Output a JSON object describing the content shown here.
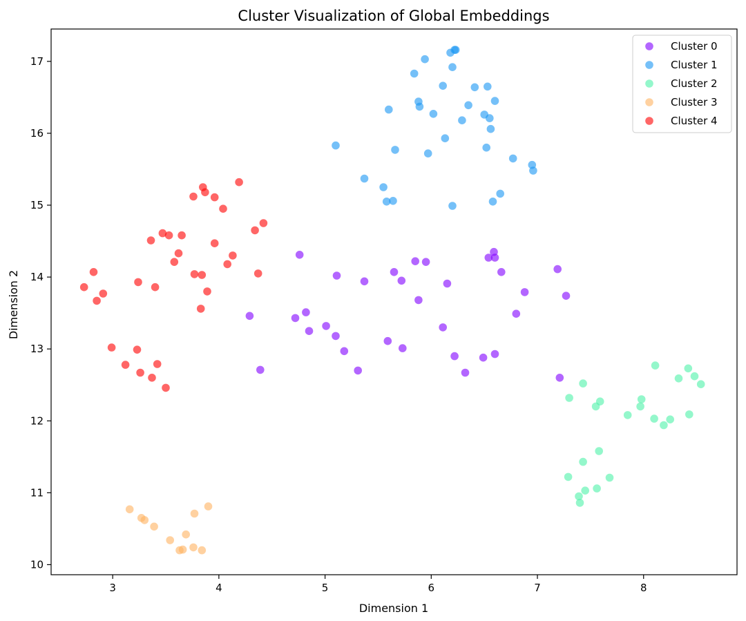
{
  "chart_data": {
    "type": "scatter",
    "title": "Cluster Visualization of Global Embeddings",
    "xlabel": "Dimension 1",
    "ylabel": "Dimension 2",
    "xlim": [
      2.42,
      8.88
    ],
    "ylim": [
      9.86,
      17.45
    ],
    "xticks": [
      3,
      4,
      5,
      6,
      7,
      8
    ],
    "yticks": [
      10,
      11,
      12,
      13,
      14,
      15,
      16,
      17
    ],
    "grid": false,
    "legend_position": "top-right",
    "series": [
      {
        "name": "Cluster 0",
        "color": "#8000ff",
        "points": [
          [
            4.29,
            13.46
          ],
          [
            4.39,
            12.71
          ],
          [
            4.72,
            13.43
          ],
          [
            4.76,
            14.31
          ],
          [
            4.82,
            13.51
          ],
          [
            4.85,
            13.25
          ],
          [
            5.01,
            13.32
          ],
          [
            5.1,
            13.18
          ],
          [
            5.11,
            14.02
          ],
          [
            5.18,
            12.97
          ],
          [
            5.31,
            12.7
          ],
          [
            5.37,
            13.94
          ],
          [
            5.59,
            13.11
          ],
          [
            5.65,
            14.07
          ],
          [
            5.72,
            13.95
          ],
          [
            5.73,
            13.01
          ],
          [
            5.85,
            14.22
          ],
          [
            5.88,
            13.68
          ],
          [
            5.95,
            14.21
          ],
          [
            6.11,
            13.3
          ],
          [
            6.15,
            13.91
          ],
          [
            6.22,
            12.9
          ],
          [
            6.32,
            12.67
          ],
          [
            6.49,
            12.88
          ],
          [
            6.54,
            14.27
          ],
          [
            6.59,
            14.35
          ],
          [
            6.6,
            14.27
          ],
          [
            6.6,
            12.93
          ],
          [
            6.66,
            14.07
          ],
          [
            6.8,
            13.49
          ],
          [
            6.88,
            13.79
          ],
          [
            7.19,
            14.11
          ],
          [
            7.27,
            13.74
          ],
          [
            7.21,
            12.6
          ]
        ]
      },
      {
        "name": "Cluster 1",
        "color": "#1996f3",
        "points": [
          [
            5.1,
            15.83
          ],
          [
            5.37,
            15.37
          ],
          [
            5.55,
            15.25
          ],
          [
            5.58,
            15.05
          ],
          [
            5.6,
            16.33
          ],
          [
            5.64,
            15.06
          ],
          [
            5.66,
            15.77
          ],
          [
            5.84,
            16.83
          ],
          [
            5.88,
            16.44
          ],
          [
            5.89,
            16.37
          ],
          [
            5.94,
            17.03
          ],
          [
            5.97,
            15.72
          ],
          [
            6.02,
            16.27
          ],
          [
            6.11,
            16.66
          ],
          [
            6.13,
            15.93
          ],
          [
            6.18,
            17.12
          ],
          [
            6.2,
            16.92
          ],
          [
            6.2,
            14.99
          ],
          [
            6.22,
            17.16
          ],
          [
            6.23,
            17.16
          ],
          [
            6.29,
            16.18
          ],
          [
            6.35,
            16.39
          ],
          [
            6.41,
            16.64
          ],
          [
            6.5,
            16.26
          ],
          [
            6.52,
            15.8
          ],
          [
            6.53,
            16.65
          ],
          [
            6.55,
            16.21
          ],
          [
            6.56,
            16.06
          ],
          [
            6.58,
            15.05
          ],
          [
            6.6,
            16.45
          ],
          [
            6.65,
            15.16
          ],
          [
            6.77,
            15.65
          ],
          [
            6.95,
            15.56
          ],
          [
            6.96,
            15.48
          ]
        ]
      },
      {
        "name": "Cluster 2",
        "color": "#4df2a8",
        "points": [
          [
            7.29,
            11.22
          ],
          [
            7.3,
            12.32
          ],
          [
            7.39,
            10.95
          ],
          [
            7.4,
            10.86
          ],
          [
            7.43,
            11.43
          ],
          [
            7.43,
            12.52
          ],
          [
            7.45,
            11.03
          ],
          [
            7.55,
            12.2
          ],
          [
            7.56,
            11.06
          ],
          [
            7.58,
            11.58
          ],
          [
            7.59,
            12.27
          ],
          [
            7.68,
            11.21
          ],
          [
            7.85,
            12.08
          ],
          [
            7.97,
            12.2
          ],
          [
            7.98,
            12.3
          ],
          [
            8.1,
            12.03
          ],
          [
            8.11,
            12.77
          ],
          [
            8.19,
            11.94
          ],
          [
            8.25,
            12.02
          ],
          [
            8.33,
            12.59
          ],
          [
            8.42,
            12.73
          ],
          [
            8.43,
            12.09
          ],
          [
            8.48,
            12.62
          ],
          [
            8.54,
            12.51
          ]
        ]
      },
      {
        "name": "Cluster 3",
        "color": "#ffb360",
        "points": [
          [
            3.16,
            10.77
          ],
          [
            3.27,
            10.65
          ],
          [
            3.3,
            10.62
          ],
          [
            3.39,
            10.53
          ],
          [
            3.54,
            10.34
          ],
          [
            3.63,
            10.2
          ],
          [
            3.66,
            10.21
          ],
          [
            3.69,
            10.42
          ],
          [
            3.76,
            10.24
          ],
          [
            3.77,
            10.71
          ],
          [
            3.84,
            10.2
          ],
          [
            3.9,
            10.81
          ]
        ]
      },
      {
        "name": "Cluster 4",
        "color": "#ff0000",
        "points": [
          [
            2.73,
            13.86
          ],
          [
            2.82,
            14.07
          ],
          [
            2.85,
            13.67
          ],
          [
            2.91,
            13.77
          ],
          [
            2.99,
            13.02
          ],
          [
            3.12,
            12.78
          ],
          [
            3.23,
            12.99
          ],
          [
            3.24,
            13.93
          ],
          [
            3.26,
            12.67
          ],
          [
            3.36,
            14.51
          ],
          [
            3.37,
            12.6
          ],
          [
            3.4,
            13.86
          ],
          [
            3.42,
            12.79
          ],
          [
            3.47,
            14.61
          ],
          [
            3.5,
            12.46
          ],
          [
            3.53,
            14.58
          ],
          [
            3.58,
            14.21
          ],
          [
            3.62,
            14.33
          ],
          [
            3.65,
            14.58
          ],
          [
            3.76,
            15.12
          ],
          [
            3.77,
            14.04
          ],
          [
            3.83,
            13.56
          ],
          [
            3.84,
            14.03
          ],
          [
            3.85,
            15.25
          ],
          [
            3.87,
            15.18
          ],
          [
            3.89,
            13.8
          ],
          [
            3.96,
            14.47
          ],
          [
            3.96,
            15.11
          ],
          [
            4.04,
            14.95
          ],
          [
            4.08,
            14.18
          ],
          [
            4.13,
            14.3
          ],
          [
            4.19,
            15.32
          ],
          [
            4.34,
            14.65
          ],
          [
            4.37,
            14.05
          ],
          [
            4.42,
            14.75
          ]
        ]
      }
    ]
  }
}
